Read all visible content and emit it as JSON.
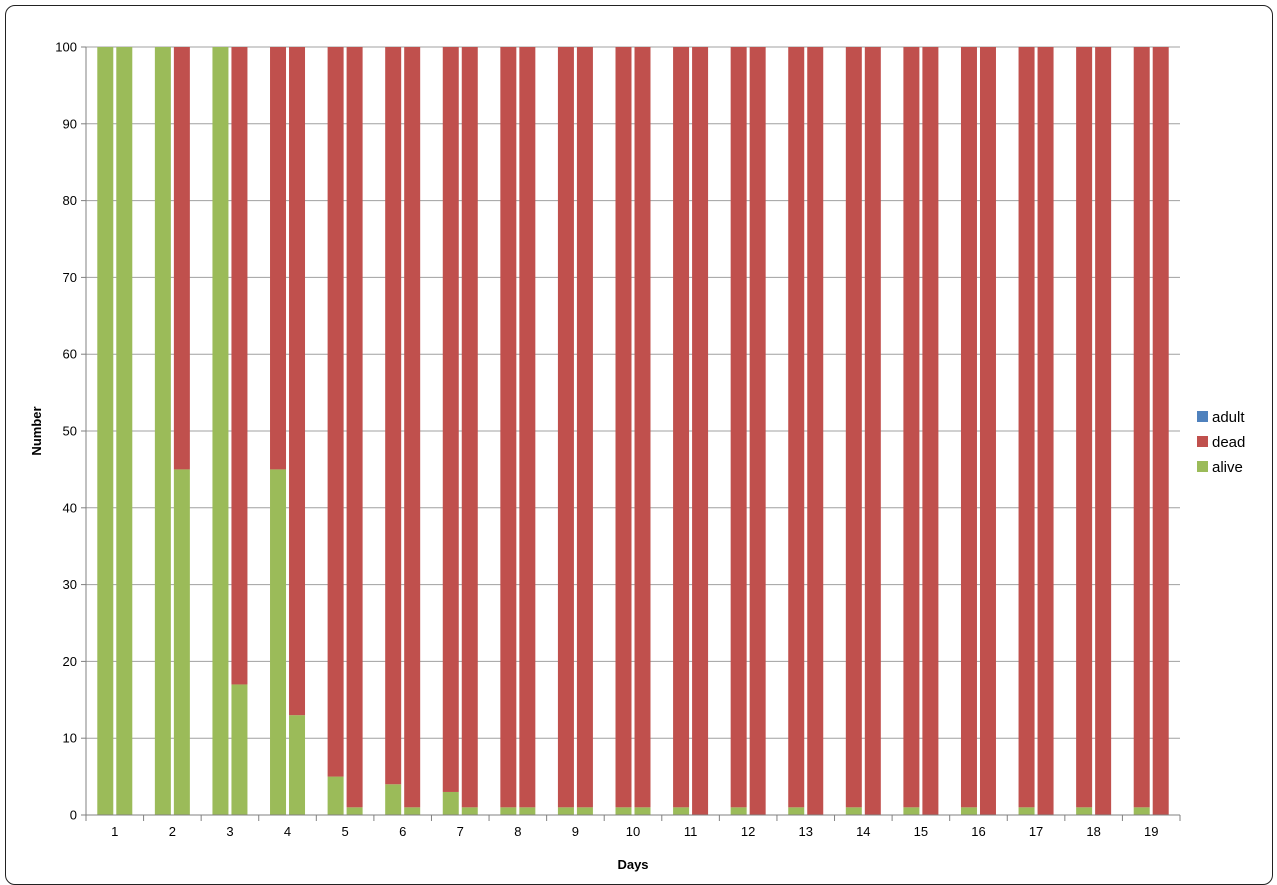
{
  "chart_data": {
    "type": "bar",
    "stacked": true,
    "title": "",
    "xlabel": "Days",
    "ylabel": "Number",
    "ylim": [
      0,
      100
    ],
    "yticks": [
      0,
      10,
      20,
      30,
      40,
      50,
      60,
      70,
      80,
      90,
      100
    ],
    "grid": true,
    "legend_position": "right",
    "categories": [
      "1",
      "2",
      "3",
      "4",
      "5",
      "6",
      "7",
      "8",
      "9",
      "10",
      "11",
      "12",
      "13",
      "14",
      "15",
      "16",
      "17",
      "18",
      "19"
    ],
    "bars_per_category": 2,
    "legend": [
      {
        "name": "adult",
        "color": "#4f81bd"
      },
      {
        "name": "dead",
        "color": "#c0504d"
      },
      {
        "name": "alive",
        "color": "#9bbb59"
      }
    ],
    "bars": [
      {
        "category": "1",
        "alive": [
          100,
          100
        ],
        "dead": [
          0,
          0
        ],
        "adult": [
          0,
          0
        ]
      },
      {
        "category": "2",
        "alive": [
          100,
          45
        ],
        "dead": [
          0,
          55
        ],
        "adult": [
          0,
          0
        ]
      },
      {
        "category": "3",
        "alive": [
          100,
          17
        ],
        "dead": [
          0,
          83
        ],
        "adult": [
          0,
          0
        ]
      },
      {
        "category": "4",
        "alive": [
          45,
          13
        ],
        "dead": [
          55,
          87
        ],
        "adult": [
          0,
          0
        ]
      },
      {
        "category": "5",
        "alive": [
          5,
          1
        ],
        "dead": [
          95,
          99
        ],
        "adult": [
          0,
          0
        ]
      },
      {
        "category": "6",
        "alive": [
          4,
          1
        ],
        "dead": [
          96,
          99
        ],
        "adult": [
          0,
          0
        ]
      },
      {
        "category": "7",
        "alive": [
          3,
          1
        ],
        "dead": [
          97,
          99
        ],
        "adult": [
          0,
          0
        ]
      },
      {
        "category": "8",
        "alive": [
          1,
          1
        ],
        "dead": [
          99,
          99
        ],
        "adult": [
          0,
          0
        ]
      },
      {
        "category": "9",
        "alive": [
          1,
          1
        ],
        "dead": [
          99,
          99
        ],
        "adult": [
          0,
          0
        ]
      },
      {
        "category": "10",
        "alive": [
          1,
          1
        ],
        "dead": [
          99,
          99
        ],
        "adult": [
          0,
          0
        ]
      },
      {
        "category": "11",
        "alive": [
          1,
          0
        ],
        "dead": [
          99,
          100
        ],
        "adult": [
          0,
          0
        ]
      },
      {
        "category": "12",
        "alive": [
          1,
          0
        ],
        "dead": [
          99,
          100
        ],
        "adult": [
          0,
          0
        ]
      },
      {
        "category": "13",
        "alive": [
          1,
          0
        ],
        "dead": [
          99,
          100
        ],
        "adult": [
          0,
          0
        ]
      },
      {
        "category": "14",
        "alive": [
          1,
          0
        ],
        "dead": [
          99,
          100
        ],
        "adult": [
          0,
          0
        ]
      },
      {
        "category": "15",
        "alive": [
          1,
          0
        ],
        "dead": [
          99,
          100
        ],
        "adult": [
          0,
          0
        ]
      },
      {
        "category": "16",
        "alive": [
          1,
          0
        ],
        "dead": [
          99,
          100
        ],
        "adult": [
          0,
          0
        ]
      },
      {
        "category": "17",
        "alive": [
          1,
          0
        ],
        "dead": [
          99,
          100
        ],
        "adult": [
          0,
          0
        ]
      },
      {
        "category": "18",
        "alive": [
          1,
          0
        ],
        "dead": [
          99,
          100
        ],
        "adult": [
          0,
          0
        ]
      },
      {
        "category": "19",
        "alive": [
          1,
          0
        ],
        "dead": [
          99,
          100
        ],
        "adult": [
          0,
          0
        ]
      }
    ]
  }
}
